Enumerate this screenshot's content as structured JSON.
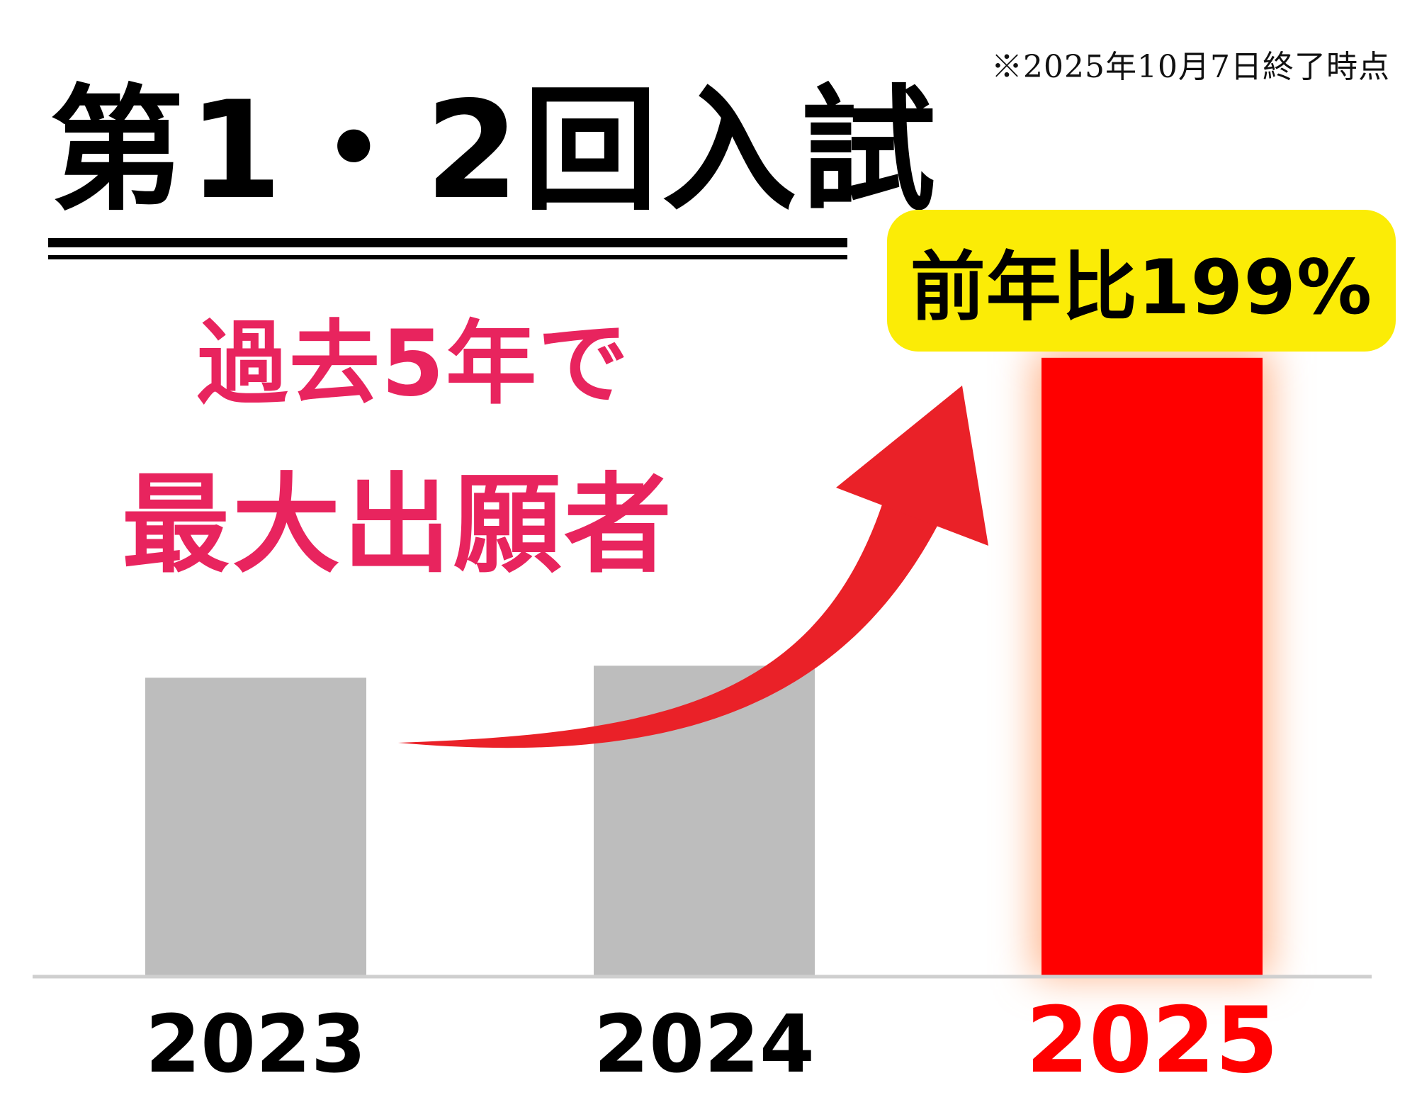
{
  "note": "※2025年10月7日終了時点",
  "title": "第1・2回入試",
  "headline": {
    "line1": "過去5年で",
    "line2": "最大出願者"
  },
  "badge": "前年比199%",
  "colors": {
    "past_bar": "#bdbdbd",
    "highlight_bar": "#ff0000",
    "highlight_glow": "#ffb48a",
    "arrow": "#ea2128",
    "headline": "#e8245e",
    "badge_bg": "#fbec06",
    "axis": "#cfcfcf"
  },
  "chart_data": {
    "type": "bar",
    "categories": [
      "2023",
      "2024",
      "2025"
    ],
    "values": [
      100,
      104,
      207
    ],
    "highlight_index": 2,
    "ylim": [
      0,
      220
    ],
    "grid": false,
    "legend": "none",
    "annotation": "前年比199%"
  }
}
